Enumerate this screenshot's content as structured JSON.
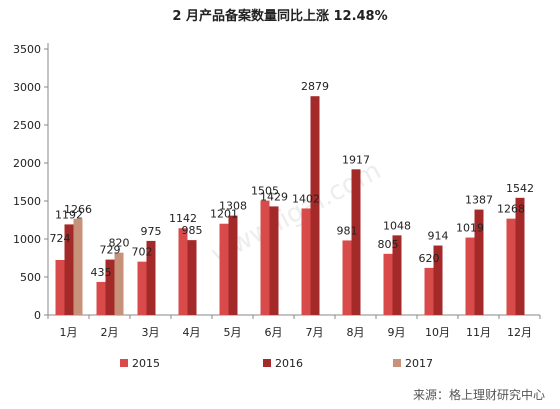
{
  "chart_data": {
    "type": "bar",
    "title": "2 月产品备案数量同比上涨 12.48%",
    "categories": [
      "1月",
      "2月",
      "3月",
      "4月",
      "5月",
      "6月",
      "7月",
      "8月",
      "9月",
      "10月",
      "11月",
      "12月"
    ],
    "series": [
      {
        "name": "2015",
        "color": "#d94b4b",
        "values": [
          724,
          435,
          702,
          1142,
          1201,
          1505,
          1402,
          981,
          805,
          620,
          1019,
          1268
        ]
      },
      {
        "name": "2016",
        "color": "#a42a2a",
        "values": [
          1192,
          729,
          975,
          985,
          1308,
          1429,
          2879,
          1917,
          1048,
          914,
          1387,
          1542
        ]
      },
      {
        "name": "2017",
        "color": "#c8917a",
        "values": [
          1266,
          820,
          null,
          null,
          null,
          null,
          null,
          null,
          null,
          null,
          null,
          null
        ]
      }
    ],
    "yticks": [
      0,
      500,
      1000,
      1500,
      2000,
      2500,
      3000,
      3500
    ],
    "ylim": [
      0,
      3500
    ],
    "xlabel": "",
    "ylabel": "",
    "grid": false,
    "legend": "bottom",
    "source": "来源：格上理财研究中心",
    "watermark": "www.ligai.com"
  }
}
